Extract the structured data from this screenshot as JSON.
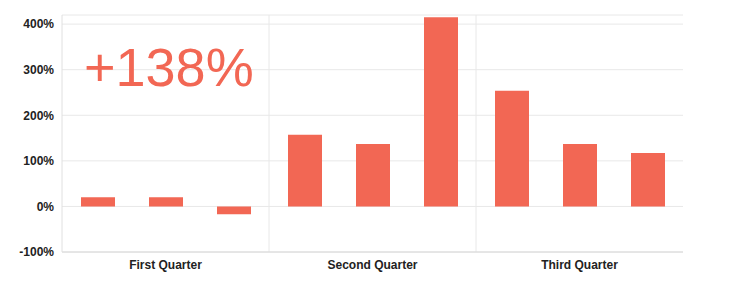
{
  "chart_data": {
    "type": "bar",
    "annotation": "+138%",
    "categories": [
      "First Quarter",
      "Second Quarter",
      "Third Quarter"
    ],
    "series": [
      {
        "color": "#f26754",
        "values": [
          20,
          157,
          254
        ]
      },
      {
        "color": "#f26754",
        "values": [
          20,
          137,
          137
        ]
      },
      {
        "color": "#f26754",
        "values": [
          -17,
          415,
          117
        ]
      }
    ],
    "ylim": [
      -100,
      420
    ],
    "yticks": [
      {
        "value": -100,
        "label": "-100%"
      },
      {
        "value": 0,
        "label": "0%"
      },
      {
        "value": 100,
        "label": "100%"
      },
      {
        "value": 200,
        "label": "200%"
      },
      {
        "value": 300,
        "label": "300%"
      },
      {
        "value": 400,
        "label": "400%"
      }
    ],
    "grid": true
  }
}
